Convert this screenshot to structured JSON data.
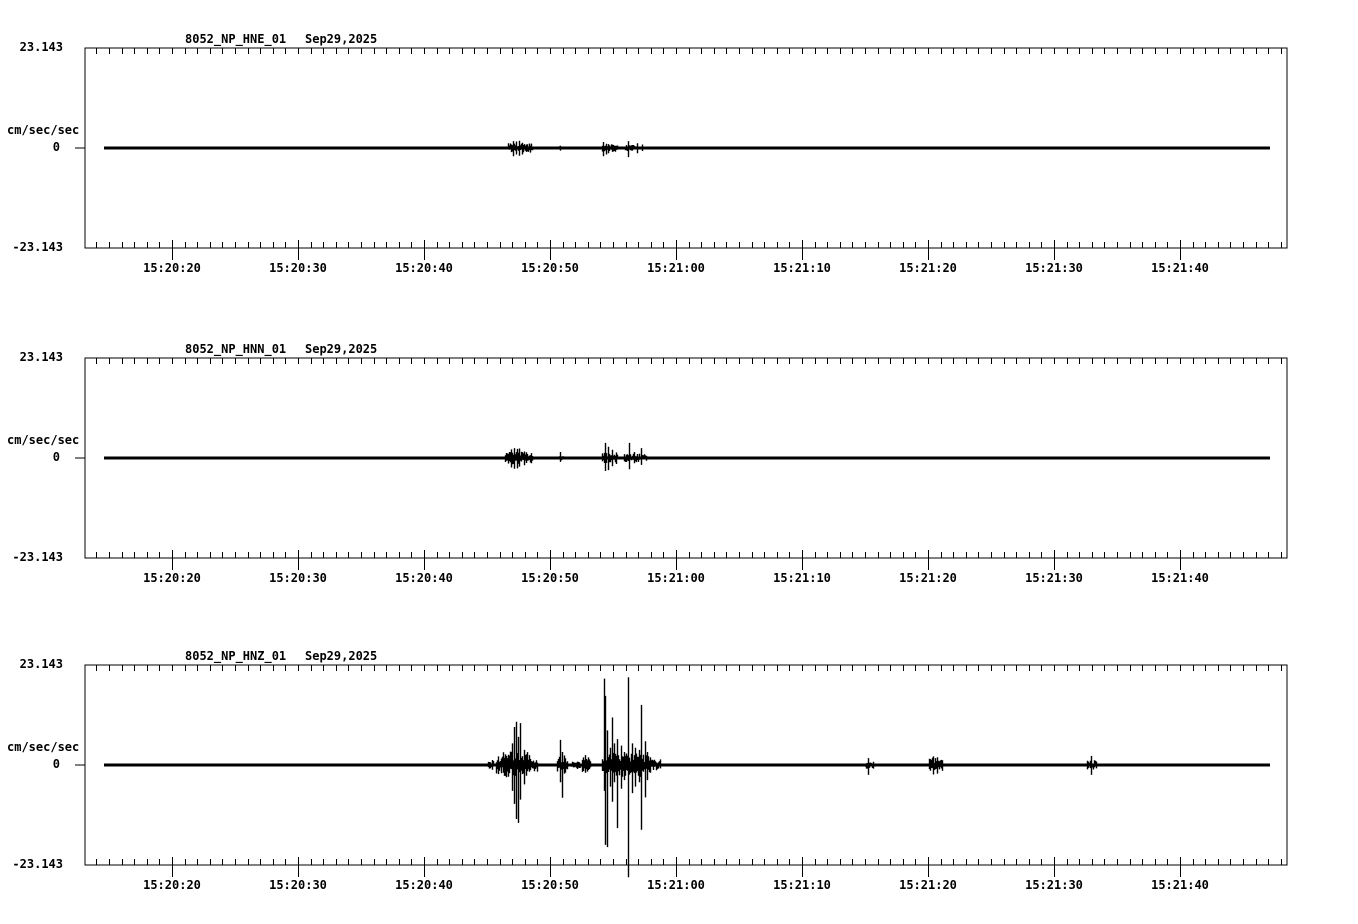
{
  "page": {
    "background_color": "#ffffff",
    "ink_color": "#000000",
    "description_labels": {
      "station": "8052",
      "network": "NP"
    }
  },
  "chart_data": [
    {
      "type": "line",
      "title": "8052_NP_HNE_01",
      "date_label": "Sep29,2025",
      "ylabel": "cm/sec/sec",
      "y_top_label": "23.143",
      "y_zero_label": "0",
      "y_bottom_label": "-23.143",
      "ylim": [
        -23.143,
        23.143
      ],
      "baseline_value": 0,
      "x_tick_labels": [
        "15:20:20",
        "15:20:30",
        "15:20:40",
        "15:20:50",
        "15:21:00",
        "15:21:10",
        "15:21:20",
        "15:21:30",
        "15:21:40"
      ],
      "x_major_tick_seconds": [
        20,
        30,
        40,
        50,
        60,
        70,
        80,
        90,
        100
      ],
      "x_minor_tick_interval_seconds": 1,
      "time_reference": "seconds after 15:20:00",
      "bursts": [
        [
          46.7,
          48.6,
          1.1
        ],
        [
          50.65,
          50.95,
          0.45
        ],
        [
          54.15,
          55.3,
          0.9
        ],
        [
          55.95,
          56.7,
          0.7
        ]
      ],
      "spikes": [
        [
          47.1,
          1.6,
          1.9
        ],
        [
          47.3,
          1.5,
          1.5
        ],
        [
          47.5,
          1.7,
          1.8
        ],
        [
          47.8,
          1.2,
          1.5
        ],
        [
          48.1,
          0.8,
          0.9
        ],
        [
          50.8,
          0.5,
          0.6
        ],
        [
          54.2,
          1.4,
          1.9
        ],
        [
          54.45,
          1.0,
          1.5
        ],
        [
          54.6,
          0.9,
          1.2
        ],
        [
          54.9,
          0.6,
          0.9
        ],
        [
          55.1,
          0.5,
          0.7
        ],
        [
          56.2,
          1.6,
          2.1
        ],
        [
          56.9,
          1.1,
          1.2
        ],
        [
          57.3,
          0.8,
          0.7
        ]
      ]
    },
    {
      "type": "line",
      "title": "8052_NP_HNN_01",
      "date_label": "Sep29,2025",
      "ylabel": "cm/sec/sec",
      "y_top_label": "23.143",
      "y_zero_label": "0",
      "y_bottom_label": "-23.143",
      "ylim": [
        -23.143,
        23.143
      ],
      "baseline_value": 0,
      "x_tick_labels": [
        "15:20:20",
        "15:20:30",
        "15:20:40",
        "15:20:50",
        "15:21:00",
        "15:21:10",
        "15:21:20",
        "15:21:30",
        "15:21:40"
      ],
      "x_major_tick_seconds": [
        20,
        30,
        40,
        50,
        60,
        70,
        80,
        90,
        100
      ],
      "x_minor_tick_interval_seconds": 1,
      "time_reference": "seconds after 15:20:00",
      "bursts": [
        [
          45.6,
          45.85,
          0.35
        ],
        [
          46.4,
          48.6,
          1.5
        ],
        [
          50.7,
          51.0,
          0.5
        ],
        [
          54.15,
          55.35,
          1.2
        ],
        [
          55.9,
          57.6,
          1.0
        ]
      ],
      "spikes": [
        [
          46.9,
          2.0,
          2.2
        ],
        [
          47.15,
          2.3,
          2.5
        ],
        [
          47.35,
          2.1,
          2.4
        ],
        [
          47.55,
          2.2,
          2.0
        ],
        [
          47.9,
          1.5,
          1.7
        ],
        [
          50.8,
          1.4,
          0.9
        ],
        [
          54.35,
          3.5,
          3.0
        ],
        [
          54.6,
          2.6,
          2.8
        ],
        [
          54.95,
          1.9,
          1.9
        ],
        [
          55.2,
          1.3,
          1.4
        ],
        [
          56.25,
          3.5,
          2.6
        ],
        [
          56.7,
          1.4,
          1.2
        ],
        [
          57.25,
          2.3,
          1.6
        ]
      ]
    },
    {
      "type": "line",
      "title": "8052_NP_HNZ_01",
      "date_label": "Sep29,2025",
      "ylabel": "cm/sec/sec",
      "y_top_label": "23.143",
      "y_zero_label": "0",
      "y_bottom_label": "-23.143",
      "ylim": [
        -23.143,
        23.143
      ],
      "baseline_value": 0,
      "x_tick_labels": [
        "15:20:20",
        "15:20:30",
        "15:20:40",
        "15:20:50",
        "15:21:00",
        "15:21:10",
        "15:21:20",
        "15:21:30",
        "15:21:40"
      ],
      "x_major_tick_seconds": [
        20,
        30,
        40,
        50,
        60,
        70,
        80,
        90,
        100
      ],
      "x_minor_tick_interval_seconds": 1,
      "time_reference": "seconds after 15:20:00",
      "bursts": [
        [
          45.1,
          45.5,
          1.2
        ],
        [
          45.7,
          46.2,
          2.0
        ],
        [
          46.3,
          48.3,
          3.2
        ],
        [
          48.3,
          49.0,
          1.6
        ],
        [
          50.55,
          51.35,
          2.0
        ],
        [
          51.7,
          51.95,
          0.8
        ],
        [
          52.0,
          52.35,
          1.0
        ],
        [
          52.5,
          53.2,
          1.8
        ],
        [
          54.1,
          57.95,
          2.8
        ],
        [
          57.95,
          58.7,
          1.3
        ],
        [
          64.2,
          65.6,
          0.35
        ],
        [
          73.5,
          74.0,
          0.3
        ],
        [
          75.0,
          75.6,
          0.9
        ],
        [
          80.1,
          81.1,
          1.7
        ],
        [
          92.6,
          93.3,
          1.1
        ]
      ],
      "spikes": [
        [
          45.85,
          2.0,
          2.1
        ],
        [
          47.0,
          5.0,
          6.0
        ],
        [
          47.15,
          8.8,
          9.0
        ],
        [
          47.3,
          10.0,
          12.5
        ],
        [
          47.45,
          6.5,
          13.4
        ],
        [
          47.62,
          9.7,
          8.0
        ],
        [
          47.9,
          3.5,
          4.5
        ],
        [
          48.1,
          2.5,
          2.5
        ],
        [
          50.8,
          5.8,
          4.0
        ],
        [
          50.95,
          3.0,
          7.6
        ],
        [
          51.1,
          2.2,
          2.0
        ],
        [
          52.8,
          2.3,
          1.8
        ],
        [
          54.25,
          20.0,
          6.0
        ],
        [
          54.4,
          16.0,
          18.5
        ],
        [
          54.55,
          8.0,
          19.0
        ],
        [
          54.75,
          4.0,
          5.0
        ],
        [
          54.9,
          11.0,
          8.5
        ],
        [
          55.05,
          5.0,
          4.0
        ],
        [
          55.3,
          6.0,
          14.6
        ],
        [
          55.6,
          4.5,
          5.5
        ],
        [
          55.9,
          3.0,
          3.5
        ],
        [
          56.2,
          20.3,
          26.0
        ],
        [
          56.5,
          5.0,
          6.5
        ],
        [
          56.75,
          4.0,
          5.0
        ],
        [
          57.1,
          3.5,
          4.0
        ],
        [
          57.25,
          13.9,
          15.0
        ],
        [
          57.5,
          5.5,
          7.5
        ],
        [
          57.7,
          3.0,
          3.5
        ],
        [
          75.25,
          1.6,
          2.3
        ],
        [
          80.4,
          2.0,
          2.2
        ],
        [
          80.7,
          1.8,
          2.0
        ],
        [
          92.9,
          2.1,
          2.3
        ]
      ]
    }
  ]
}
